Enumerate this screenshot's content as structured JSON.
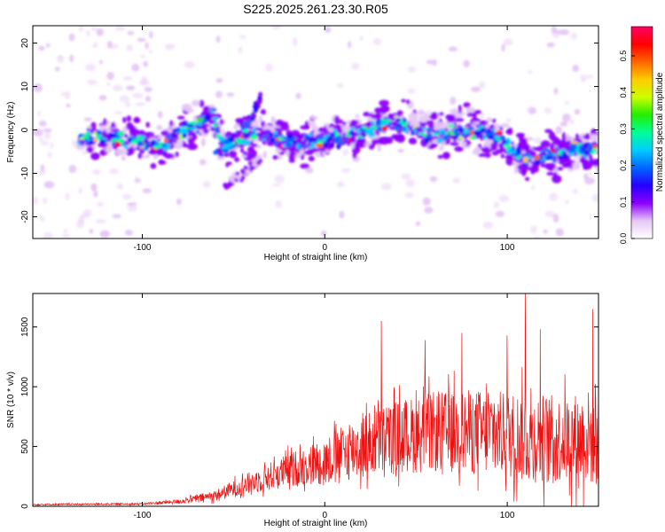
{
  "page_title": "S225.2025.261.23.30.R05",
  "chart_data": [
    {
      "type": "heatmap",
      "title": "S225.2025.261.23.30.R05",
      "xlabel": "Height of straight line (km)",
      "ylabel": "Frequency (Hz)",
      "xlim": [
        -160,
        150
      ],
      "ylim": [
        -25,
        24
      ],
      "x_ticks": [
        -100,
        0,
        100
      ],
      "y_ticks": [
        -20,
        -10,
        0,
        10,
        20
      ],
      "colorbar": {
        "label": "Normalized spectral amplitude",
        "range": [
          0.0,
          0.58
        ],
        "ticks": [
          0.0,
          0.1,
          0.2,
          0.3,
          0.4,
          0.5
        ],
        "colors": [
          "#ffffff",
          "#e6c8f5",
          "#8c00ff",
          "#2600ff",
          "#0066ff",
          "#00ccff",
          "#00ff99",
          "#22ee00",
          "#ccff00",
          "#ffcc00",
          "#ff6600",
          "#ff0000",
          "#ff0066"
        ]
      },
      "ridge": {
        "x": [
          -140,
          -120,
          -100,
          -90,
          -80,
          -70,
          -62,
          -55,
          -45,
          -35,
          -25,
          -15,
          0,
          10,
          25,
          35,
          45,
          55,
          70,
          85,
          95,
          105,
          115,
          130,
          150
        ],
        "freq_hz": [
          -2,
          -2,
          -3,
          -4,
          -1,
          1,
          4,
          -4,
          -2,
          -1,
          -2,
          -3,
          -2,
          -2,
          0,
          2,
          1,
          -1,
          -1,
          0,
          -2,
          -5,
          -7,
          -5,
          -4
        ]
      },
      "secondary_ridge": {
        "x": [
          -60,
          -50,
          -40,
          -35
        ],
        "freq_hz": [
          -5,
          -2,
          3,
          8
        ]
      },
      "lower_branch": {
        "x": [
          -55,
          -45,
          -35
        ],
        "freq_hz": [
          -13,
          -10,
          -7
        ]
      }
    },
    {
      "type": "line",
      "xlabel": "Height of straight line (km)",
      "ylabel": "SNR (10 * v/v)",
      "xlim": [
        -160,
        150
      ],
      "ylim": [
        0,
        1780
      ],
      "x_ticks": [
        -100,
        0,
        100
      ],
      "y_ticks": [
        0,
        500,
        1000,
        1500
      ],
      "color": "#ee1111",
      "envelope": {
        "x": [
          -160,
          -100,
          -80,
          -60,
          -40,
          -20,
          0,
          20,
          40,
          60,
          80,
          100,
          110,
          130,
          150
        ],
        "mean": [
          15,
          20,
          40,
          90,
          200,
          300,
          380,
          500,
          580,
          620,
          620,
          600,
          580,
          560,
          580
        ],
        "spread": [
          10,
          12,
          30,
          70,
          150,
          220,
          300,
          420,
          480,
          520,
          550,
          560,
          600,
          560,
          650
        ]
      },
      "peaks": [
        {
          "x": 110,
          "y": 1780
        },
        {
          "x": 147,
          "y": 1650
        },
        {
          "x": 31,
          "y": 1550
        },
        {
          "x": 118,
          "y": 1480
        },
        {
          "x": 75,
          "y": 1450
        },
        {
          "x": 100,
          "y": 1430
        },
        {
          "x": 55,
          "y": 1390
        }
      ]
    }
  ]
}
